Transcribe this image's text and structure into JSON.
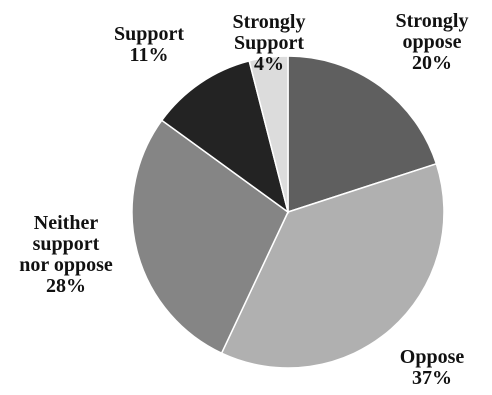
{
  "chart_data": {
    "type": "pie",
    "start_angle_deg": 0,
    "direction": "clockwise",
    "slices": [
      {
        "label_lines": [
          "Strongly",
          "oppose"
        ],
        "value": 20,
        "value_label": "20%",
        "color": "#5f5f5f"
      },
      {
        "label_lines": [
          "Oppose"
        ],
        "value": 37,
        "value_label": "37%",
        "color": "#b0b0b0"
      },
      {
        "label_lines": [
          "Neither",
          "support",
          "nor oppose"
        ],
        "value": 28,
        "value_label": "28%",
        "color": "#858585"
      },
      {
        "label_lines": [
          "Support"
        ],
        "value": 11,
        "value_label": "11%",
        "color": "#232323"
      },
      {
        "label_lines": [
          "Strongly",
          "Support"
        ],
        "value": 4,
        "value_label": "4%",
        "color": "#dcdcdc"
      }
    ]
  }
}
